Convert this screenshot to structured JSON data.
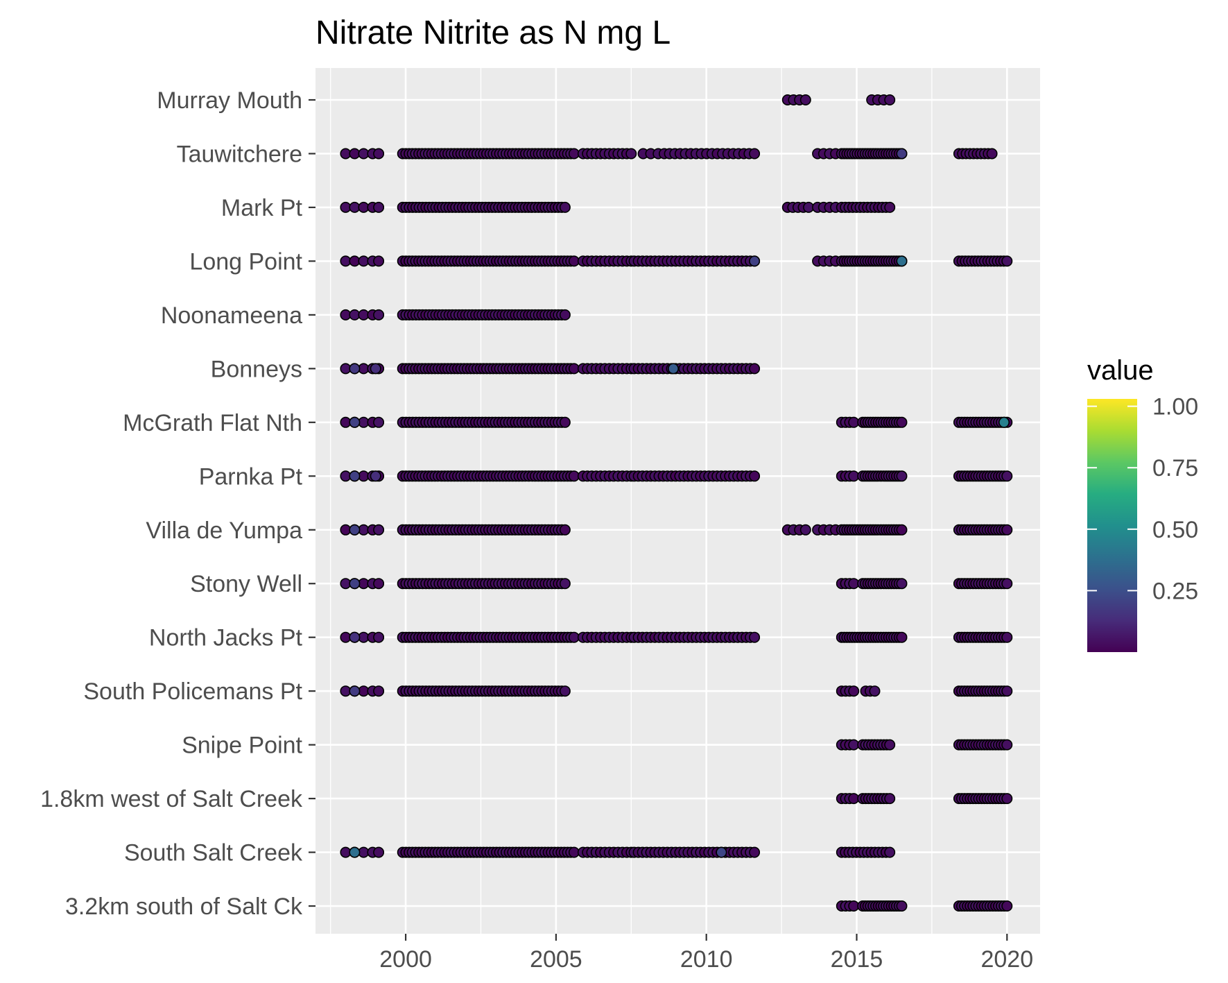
{
  "chart_data": {
    "type": "scatter",
    "title": "Nitrate  Nitrite as N mg L",
    "xlabel": "",
    "ylabel": "",
    "grid": true,
    "xlim": [
      1997.0,
      2021.1
    ],
    "x_ticks": [
      2000,
      2005,
      2010,
      2015,
      2020
    ],
    "x_minor_ticks": [
      1997.5,
      2002.5,
      2007.5,
      2012.5,
      2017.5
    ],
    "sites": [
      "Murray Mouth",
      "Tauwitchere",
      "Mark Pt",
      "Long Point",
      "Noonameena",
      "Bonneys",
      "McGrath Flat Nth",
      "Parnka Pt",
      "Villa de Yumpa",
      "Stony Well",
      "North Jacks Pt",
      "South Policemans Pt",
      "Snipe Point",
      "1.8km west of Salt Creek",
      "South Salt Creek",
      "3.2km south of Salt Ck"
    ],
    "legend": {
      "title": "value",
      "position": "right",
      "colorscale": "viridis",
      "range": [
        0.0,
        1.03
      ],
      "ticks": [
        0.25,
        0.5,
        0.75,
        1.0
      ],
      "tick_labels": [
        "0.25",
        "0.50",
        "0.75",
        "1.00"
      ]
    },
    "observations": [
      {
        "site": "Murray Mouth",
        "ranges": [
          [
            2012.7,
            2013.3,
            4
          ],
          [
            2015.5,
            2016.1,
            4
          ]
        ],
        "high": []
      },
      {
        "site": "Tauwitchere",
        "ranges": [
          [
            1998.0,
            1998.6,
            3
          ],
          [
            1998.9,
            1999.1,
            2
          ],
          [
            1999.9,
            2005.6,
            54
          ],
          [
            2005.9,
            2007.5,
            12
          ],
          [
            2007.9,
            2008.4,
            3
          ],
          [
            2008.6,
            2011.6,
            18
          ],
          [
            2013.7,
            2014.3,
            4
          ],
          [
            2014.5,
            2016.5,
            24
          ],
          [
            2018.4,
            2019.5,
            10
          ]
        ],
        "high": [
          [
            2016.5,
            0.18
          ]
        ]
      },
      {
        "site": "Mark Pt",
        "ranges": [
          [
            1998.0,
            1998.6,
            3
          ],
          [
            1998.9,
            1999.1,
            2
          ],
          [
            1999.9,
            2005.3,
            50
          ],
          [
            2012.7,
            2013.4,
            5
          ],
          [
            2013.7,
            2014.3,
            4
          ],
          [
            2014.5,
            2016.1,
            14
          ]
        ],
        "high": []
      },
      {
        "site": "Long Point",
        "ranges": [
          [
            1998.0,
            1998.6,
            3
          ],
          [
            1998.9,
            1999.1,
            2
          ],
          [
            1999.9,
            2005.6,
            54
          ],
          [
            2005.9,
            2007.5,
            12
          ],
          [
            2007.6,
            2011.6,
            30
          ],
          [
            2013.7,
            2014.3,
            4
          ],
          [
            2014.5,
            2016.5,
            24
          ],
          [
            2018.4,
            2020.0,
            16
          ]
        ],
        "high": [
          [
            2016.5,
            0.38
          ],
          [
            2011.6,
            0.2
          ]
        ]
      },
      {
        "site": "Noonameena",
        "ranges": [
          [
            1998.0,
            1998.6,
            3
          ],
          [
            1998.9,
            1999.1,
            2
          ],
          [
            1999.9,
            2005.3,
            50
          ]
        ],
        "high": []
      },
      {
        "site": "Bonneys",
        "ranges": [
          [
            1998.0,
            1998.3,
            2
          ],
          [
            1998.6,
            1998.6,
            1
          ],
          [
            1998.9,
            1999.1,
            2
          ],
          [
            1999.9,
            2005.6,
            54
          ],
          [
            2005.9,
            2007.5,
            12
          ],
          [
            2007.6,
            2011.6,
            30
          ]
        ],
        "high": [
          [
            1998.3,
            0.17
          ],
          [
            1999.0,
            0.14
          ],
          [
            2008.9,
            0.3
          ]
        ]
      },
      {
        "site": "McGrath Flat Nth",
        "ranges": [
          [
            1998.0,
            1998.6,
            3
          ],
          [
            1998.9,
            1999.1,
            2
          ],
          [
            1999.9,
            2005.3,
            50
          ],
          [
            2014.5,
            2014.9,
            4
          ],
          [
            2015.2,
            2016.5,
            16
          ],
          [
            2018.4,
            2020.0,
            18
          ]
        ],
        "high": [
          [
            1998.3,
            0.2
          ],
          [
            2019.9,
            0.45
          ]
        ]
      },
      {
        "site": "Parnka Pt",
        "ranges": [
          [
            1998.0,
            1998.6,
            3
          ],
          [
            1998.9,
            1999.1,
            2
          ],
          [
            1999.9,
            2005.6,
            54
          ],
          [
            2005.9,
            2007.5,
            12
          ],
          [
            2007.6,
            2011.6,
            30
          ],
          [
            2014.5,
            2014.9,
            4
          ],
          [
            2015.2,
            2016.5,
            16
          ],
          [
            2018.4,
            2020.0,
            18
          ]
        ],
        "high": [
          [
            1998.3,
            0.2
          ],
          [
            1999.0,
            0.14
          ]
        ]
      },
      {
        "site": "Villa de Yumpa",
        "ranges": [
          [
            1998.0,
            1998.6,
            3
          ],
          [
            1998.9,
            1999.1,
            2
          ],
          [
            1999.9,
            2005.3,
            50
          ],
          [
            2012.7,
            2013.3,
            4
          ],
          [
            2013.7,
            2014.3,
            4
          ],
          [
            2014.5,
            2016.5,
            24
          ],
          [
            2018.4,
            2020.0,
            18
          ]
        ],
        "high": [
          [
            1998.3,
            0.2
          ]
        ]
      },
      {
        "site": "Stony Well",
        "ranges": [
          [
            1998.0,
            1998.6,
            3
          ],
          [
            1998.9,
            1999.1,
            2
          ],
          [
            1999.9,
            2005.3,
            50
          ],
          [
            2014.5,
            2014.9,
            4
          ],
          [
            2015.2,
            2016.5,
            16
          ],
          [
            2018.4,
            2020.0,
            18
          ]
        ],
        "high": [
          [
            1998.3,
            0.2
          ]
        ]
      },
      {
        "site": "North Jacks Pt",
        "ranges": [
          [
            1998.0,
            1998.6,
            3
          ],
          [
            1998.9,
            1999.1,
            2
          ],
          [
            1999.9,
            2005.6,
            54
          ],
          [
            2005.9,
            2007.5,
            12
          ],
          [
            2007.6,
            2011.6,
            30
          ],
          [
            2014.5,
            2016.5,
            24
          ],
          [
            2018.4,
            2020.0,
            18
          ]
        ],
        "high": [
          [
            1998.3,
            0.15
          ]
        ]
      },
      {
        "site": "South Policemans Pt",
        "ranges": [
          [
            1998.0,
            1998.6,
            3
          ],
          [
            1998.9,
            1999.1,
            2
          ],
          [
            1999.9,
            2005.3,
            50
          ],
          [
            2014.5,
            2014.9,
            4
          ],
          [
            2015.3,
            2015.6,
            3
          ],
          [
            2018.4,
            2020.0,
            18
          ]
        ],
        "high": [
          [
            1998.3,
            0.18
          ]
        ]
      },
      {
        "site": "Snipe Point",
        "ranges": [
          [
            2014.5,
            2014.9,
            4
          ],
          [
            2015.2,
            2016.1,
            10
          ],
          [
            2018.4,
            2020.0,
            18
          ]
        ],
        "high": []
      },
      {
        "site": "1.8km west of Salt Creek",
        "ranges": [
          [
            2014.5,
            2014.9,
            4
          ],
          [
            2015.2,
            2016.1,
            10
          ],
          [
            2018.4,
            2020.0,
            18
          ]
        ],
        "high": []
      },
      {
        "site": "South Salt Creek",
        "ranges": [
          [
            1998.0,
            1998.6,
            3
          ],
          [
            1998.9,
            1999.1,
            2
          ],
          [
            1999.9,
            2005.6,
            54
          ],
          [
            2005.9,
            2007.5,
            12
          ],
          [
            2007.6,
            2011.6,
            30
          ],
          [
            2014.5,
            2016.1,
            14
          ]
        ],
        "high": [
          [
            1998.3,
            0.38
          ],
          [
            2010.5,
            0.22
          ]
        ]
      },
      {
        "site": "3.2km south of Salt Ck",
        "ranges": [
          [
            2014.5,
            2014.9,
            4
          ],
          [
            2015.2,
            2016.5,
            16
          ],
          [
            2018.4,
            2020.0,
            18
          ]
        ],
        "high": []
      }
    ]
  }
}
